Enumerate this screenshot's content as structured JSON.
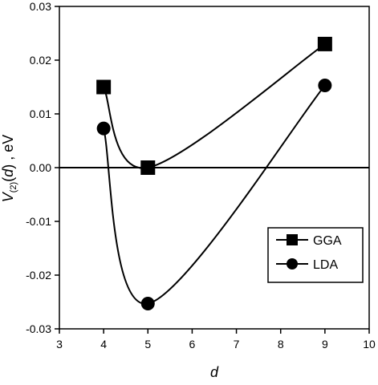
{
  "chart_data": {
    "type": "line",
    "title": "",
    "xlabel": "d",
    "ylabel": {
      "prefix": "V",
      "subscript": "(2)",
      "open": "(",
      "var": "d",
      "close": ")",
      "unit": " ,  eV"
    },
    "xlim": [
      3,
      10
    ],
    "ylim": [
      -0.03,
      0.03
    ],
    "x_ticks": [
      "3",
      "4",
      "5",
      "6",
      "7",
      "8",
      "9",
      "10"
    ],
    "y_ticks": [
      "-0.03",
      "-0.02",
      "-0.01",
      "0.00",
      "0.01",
      "0.02",
      "0.03"
    ],
    "zero_line": true,
    "grid": false,
    "legend_position": "bottom-right",
    "series": [
      {
        "name": "GGA",
        "marker": "square",
        "x": [
          4,
          5,
          9
        ],
        "y": [
          0.015,
          0.0,
          0.023
        ],
        "color": "#000000"
      },
      {
        "name": "LDA",
        "marker": "circle",
        "x": [
          4,
          5,
          9
        ],
        "y": [
          0.0073,
          -0.0253,
          0.0153
        ],
        "color": "#000000"
      }
    ]
  }
}
